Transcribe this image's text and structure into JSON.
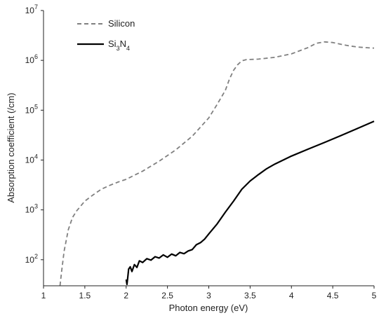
{
  "chart_data": {
    "type": "line",
    "title": "",
    "xlabel": "Photon energy (eV)",
    "ylabel": "Absorption coefficient (/cm)",
    "y_scale": "log",
    "xlim": [
      1,
      5
    ],
    "ylim": [
      30,
      10000000
    ],
    "grid": false,
    "legend_placement": "top-left",
    "x_ticks": [
      {
        "value": 1,
        "label": "1"
      },
      {
        "value": 1.5,
        "label": "1.5"
      },
      {
        "value": 2,
        "label": "2"
      },
      {
        "value": 2.5,
        "label": "2.5"
      },
      {
        "value": 3,
        "label": "3"
      },
      {
        "value": 3.5,
        "label": "3.5"
      },
      {
        "value": 4,
        "label": "4"
      },
      {
        "value": 4.5,
        "label": "4.5"
      },
      {
        "value": 5,
        "label": "5"
      }
    ],
    "y_ticks": [
      {
        "value": 100,
        "base": "10",
        "exp": "2"
      },
      {
        "value": 1000,
        "base": "10",
        "exp": "3"
      },
      {
        "value": 10000,
        "base": "10",
        "exp": "4"
      },
      {
        "value": 100000,
        "base": "10",
        "exp": "5"
      },
      {
        "value": 1000000,
        "base": "10",
        "exp": "6"
      },
      {
        "value": 10000000,
        "base": "10",
        "exp": "7"
      }
    ],
    "series": [
      {
        "name": "Silicon",
        "style": "dashed",
        "color": "#808080",
        "x": [
          1.2,
          1.22,
          1.25,
          1.3,
          1.35,
          1.4,
          1.5,
          1.6,
          1.7,
          1.8,
          1.9,
          2.0,
          2.2,
          2.4,
          2.6,
          2.8,
          3.0,
          3.1,
          3.2,
          3.25,
          3.3,
          3.35,
          3.4,
          3.45,
          3.5,
          3.6,
          3.8,
          4.0,
          4.2,
          4.3,
          4.4,
          4.5,
          4.6,
          4.7,
          4.8,
          4.9,
          5.0
        ],
        "y": [
          30,
          60,
          150,
          400,
          700,
          950,
          1500,
          2000,
          2600,
          3100,
          3600,
          4100,
          6000,
          9500,
          16000,
          30000,
          70000,
          130000,
          250000,
          420000,
          630000,
          820000,
          980000,
          1030000,
          1040000,
          1060000,
          1150000,
          1350000,
          1800000,
          2200000,
          2350000,
          2280000,
          2100000,
          1950000,
          1850000,
          1800000,
          1760000
        ]
      },
      {
        "name": "Si3N4",
        "style": "solid",
        "color": "#000000",
        "x": [
          2.0,
          2.01,
          2.02,
          2.03,
          2.05,
          2.07,
          2.1,
          2.13,
          2.16,
          2.2,
          2.25,
          2.3,
          2.35,
          2.4,
          2.45,
          2.5,
          2.55,
          2.6,
          2.65,
          2.7,
          2.75,
          2.8,
          2.85,
          2.9,
          2.95,
          3.0,
          3.1,
          3.2,
          3.3,
          3.4,
          3.5,
          3.6,
          3.7,
          3.8,
          3.9,
          4.0,
          4.2,
          4.4,
          4.6,
          4.8,
          5.0
        ],
        "y": [
          40,
          32,
          45,
          65,
          72,
          58,
          80,
          70,
          95,
          88,
          105,
          98,
          115,
          108,
          125,
          112,
          130,
          120,
          140,
          132,
          150,
          160,
          200,
          220,
          260,
          330,
          520,
          900,
          1500,
          2600,
          3800,
          5100,
          6700,
          8300,
          10000,
          12000,
          16500,
          22500,
          31000,
          43000,
          60000
        ]
      }
    ]
  }
}
